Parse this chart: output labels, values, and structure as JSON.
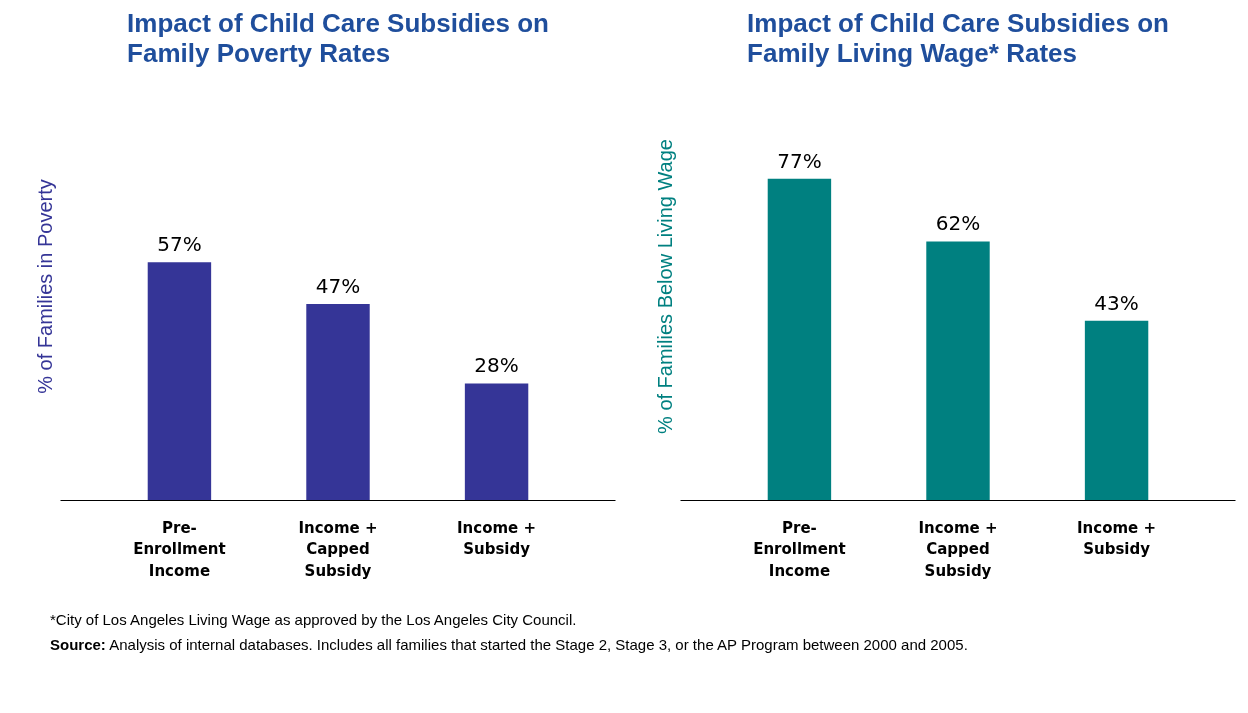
{
  "chart_data": [
    {
      "type": "bar",
      "title": "Impact of Child Care Subsidies on\nFamily Poverty Rates",
      "ylabel": "% of Families in Poverty",
      "categories": [
        "Pre-Enrollment Income",
        "Income + Capped Subsidy",
        "Income + Subsidy"
      ],
      "values": [
        57,
        47,
        28
      ],
      "value_labels": [
        "57%",
        "47%",
        "28%"
      ],
      "color": "#353597",
      "grid": false
    },
    {
      "type": "bar",
      "title": "Impact of Child Care Subsidies on\nFamily Living Wage* Rates",
      "ylabel": "% of Families Below Living Wage",
      "categories": [
        "Pre-Enrollment Income",
        "Income + Capped Subsidy",
        "Income + Subsidy"
      ],
      "values": [
        77,
        62,
        43
      ],
      "value_labels": [
        "77%",
        "62%",
        "43%"
      ],
      "color": "#008080",
      "grid": false,
      "annotations": [
        "*City of Los Angeles Living Wage as approved by the Los Angeles City Council.",
        "Source: Analysis of internal databases. Includes all families that started the Stage 2, Stage 3, or the AP Program between 2000 and 2005."
      ]
    }
  ]
}
